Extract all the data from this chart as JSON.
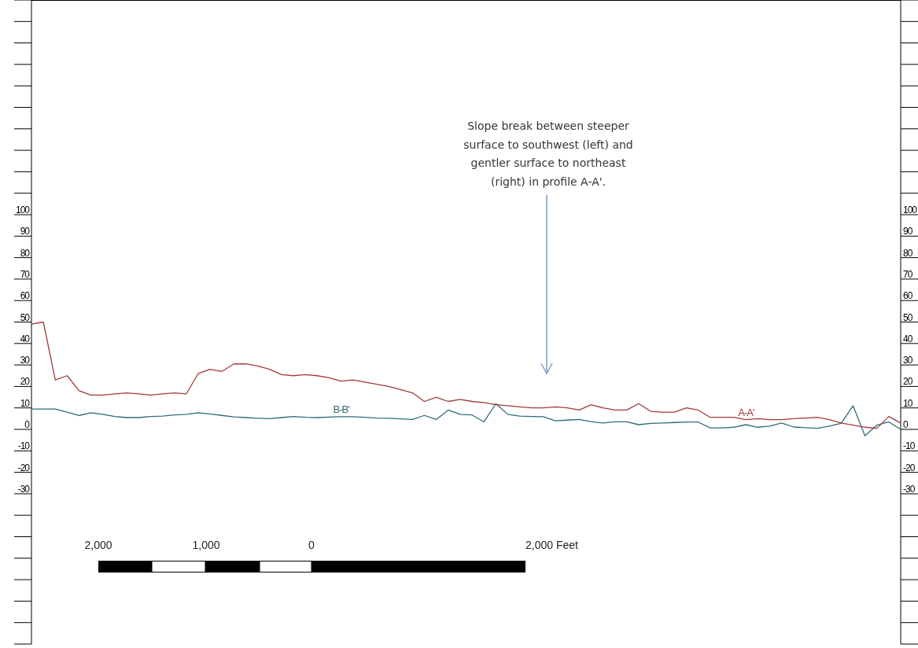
{
  "chart_data": {
    "type": "line",
    "categories": [
      null,
      null,
      null,
      null,
      null,
      null,
      null,
      null,
      null,
      null,
      null,
      null,
      null,
      null,
      null,
      null,
      null,
      null,
      null,
      null,
      null,
      null,
      null,
      null,
      null,
      null,
      null,
      null,
      null,
      null,
      null,
      null,
      null,
      null,
      null,
      null,
      null,
      null,
      null,
      null,
      null,
      null,
      null,
      null,
      null,
      null,
      null,
      null,
      null,
      null,
      null,
      null,
      null,
      null,
      null,
      null,
      null,
      null,
      null,
      null,
      null,
      null,
      null,
      null,
      null,
      null,
      null,
      null,
      null,
      null,
      null,
      null,
      null,
      null
    ],
    "series": [
      {
        "name": "B-B'",
        "color": "#2f6b7a",
        "values": [
          9.5,
          9.5,
          9.5,
          8,
          6.5,
          7.7,
          7,
          6,
          5.5,
          5.5,
          6,
          6.2,
          6.7,
          7,
          7.7,
          7.2,
          6.5,
          5.8,
          5.5,
          5.2,
          5,
          5.5,
          6,
          5.6,
          5.5,
          5.7,
          5.9,
          5.9,
          5.6,
          5.3,
          5.2,
          4.9,
          4.6,
          6.5,
          4.6,
          9,
          7,
          6.7,
          3.5,
          12,
          7,
          6.2,
          6,
          5.9,
          4,
          4.3,
          4.6,
          3.6,
          3,
          3.5,
          3.5,
          2.2,
          2.8,
          3,
          3.2,
          3.4,
          3.4,
          0.7,
          0.7,
          1,
          2.2,
          1,
          1.5,
          3,
          1.1,
          0.8,
          0.5,
          1.5,
          2.8,
          11,
          -3,
          2,
          3.5,
          0
        ]
      },
      {
        "name": "A-A'",
        "color": "#a33a3a",
        "values": [
          49,
          50,
          23,
          25,
          18,
          16,
          16,
          16.5,
          17,
          16.5,
          16,
          16.5,
          17,
          16.5,
          26,
          28,
          27,
          30.5,
          30.5,
          29.5,
          28,
          25.5,
          25,
          25.5,
          25,
          24,
          22.5,
          23,
          22,
          21,
          20,
          18.5,
          17,
          13,
          15,
          13,
          14,
          13,
          12.5,
          11.5,
          11,
          10.5,
          10,
          10,
          10.5,
          10,
          9,
          11.5,
          10,
          9,
          9,
          12,
          8.4,
          8,
          8,
          10,
          9,
          5.6,
          5.6,
          5.6,
          4.5,
          5,
          4.5,
          4.5,
          5,
          5.3,
          5.6,
          4.5,
          3,
          2,
          1,
          0.5,
          6,
          3
        ]
      }
    ],
    "ylim": [
      -100,
      200
    ],
    "yticks": [
      100,
      90,
      80,
      70,
      60,
      50,
      40,
      30,
      20,
      10,
      0,
      -10,
      -20,
      -30
    ],
    "y2lim": [
      -100,
      200
    ],
    "y2ticks": [
      100,
      90,
      80,
      70,
      60,
      50,
      40,
      30,
      20,
      10,
      0,
      -10,
      -20,
      -30
    ],
    "tick_labels": "y",
    "grid": false,
    "annotations": [
      "Slope break between  steeper surface to southwest  (left) and gentler surface to northeast (right) in profile A-A'.",
      "2,000",
      "1,000",
      "0",
      "2,000 Feet"
    ]
  }
}
